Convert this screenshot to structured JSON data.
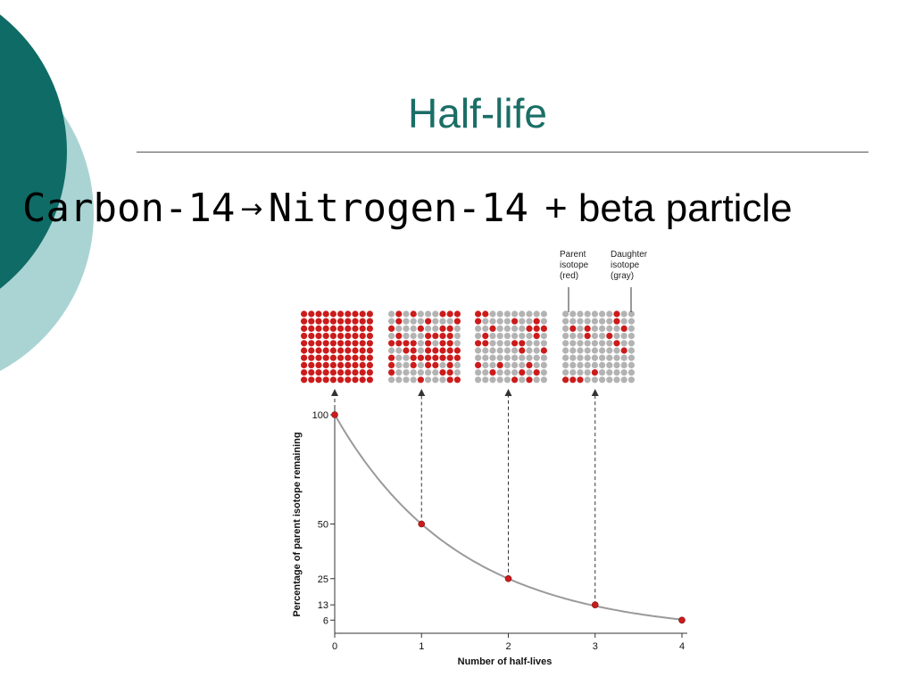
{
  "slide": {
    "title": "Half-life",
    "equation": {
      "reactant": "Carbon-14",
      "arrow": "→",
      "product": "Nitrogen-14",
      "plus": "+",
      "extra": "beta particle"
    }
  },
  "colors": {
    "title": "#1a6e66",
    "deco_dark": "#0f6b66",
    "deco_light": "#a9d4d3",
    "parent": "#cc1b1b",
    "daughter": "#b3b3b3",
    "curve": "#9a9a9a"
  },
  "legend": {
    "parent_label": [
      "Parent",
      "isotope",
      "(red)"
    ],
    "daughter_label": [
      "Daughter",
      "isotope",
      "(gray)"
    ]
  },
  "chart_data": {
    "type": "line",
    "xlabel": "Number of half-lives",
    "ylabel": "Percentage of parent isotope remaining",
    "x": [
      0,
      1,
      2,
      3,
      4
    ],
    "values": [
      100,
      50,
      25,
      13,
      6
    ],
    "xticks": [
      "0",
      "1",
      "2",
      "3",
      "4"
    ],
    "yticks": [
      "100",
      "50",
      "25",
      "13",
      "6"
    ],
    "xlim": [
      0,
      4
    ],
    "ylim": [
      0,
      100
    ],
    "grids": {
      "size": 10,
      "parent_counts": [
        100,
        50,
        25,
        13
      ]
    }
  }
}
